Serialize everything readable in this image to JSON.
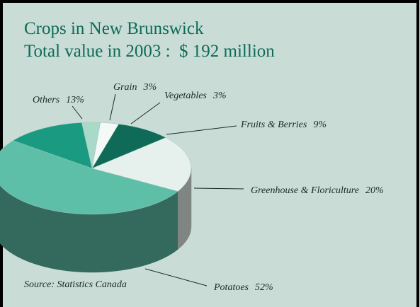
{
  "chart_data": {
    "type": "pie3d",
    "title": "Crops in New Brunswick",
    "subtitle": "Total value in 2003 :  $ 192 million",
    "categories": [
      "Potatoes",
      "Others",
      "Grain",
      "Vegetables",
      "Fruits & Berries",
      "Greenhouse & Floriculture"
    ],
    "values": [
      52,
      13,
      3,
      3,
      9,
      20
    ],
    "value_labels": [
      "52%",
      "13%",
      "3%",
      "3%",
      "9%",
      "20%"
    ],
    "colors": [
      "#5ebfa9",
      "#1a9a80",
      "#a9d9c9",
      "#f2f9f6",
      "#0f6b57",
      "#e6f1ed"
    ],
    "annotation": "Source: Statistics Canada"
  }
}
